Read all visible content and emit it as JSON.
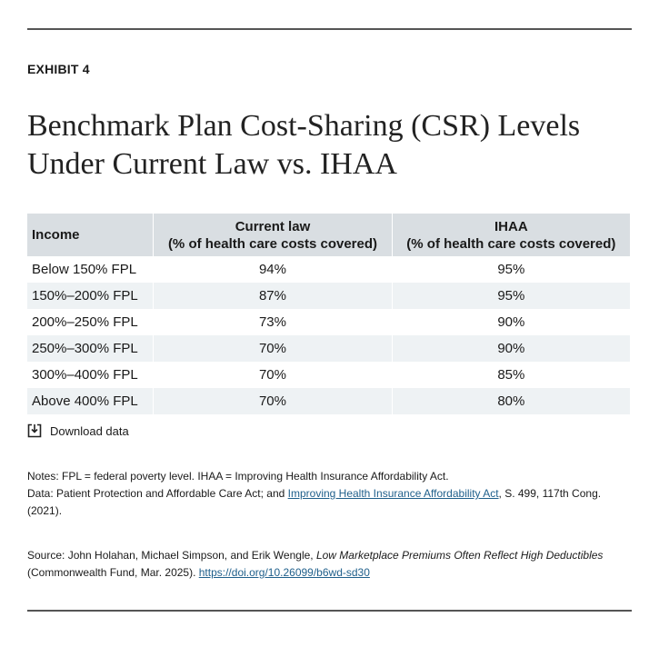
{
  "exhibit": "EXHIBIT 4",
  "title": [
    "Benchmark Plan Cost-Sharing (CSR) Levels",
    "Under Current Law vs. IHAA"
  ],
  "table": {
    "header": [
      {
        "title": "Income"
      },
      {
        "title": "Current law",
        "subtitle": "(% of health care costs covered)"
      },
      {
        "title": "IHAA",
        "subtitle": "(% of health care costs covered)"
      }
    ],
    "rows": [
      [
        "Below 150% FPL",
        "94%",
        "95%"
      ],
      [
        "150%–200% FPL",
        "87%",
        "95%"
      ],
      [
        "200%–250% FPL",
        "73%",
        "90%"
      ],
      [
        "250%–300% FPL",
        "70%",
        "90%"
      ],
      [
        "300%–400% FPL",
        "70%",
        "85%"
      ],
      [
        "Above 400% FPL",
        "70%",
        "80%"
      ]
    ]
  },
  "download": "Download data",
  "notes": {
    "notes_line": "Notes: FPL = federal poverty level. IHAA = Improving Health Insurance Affordability Act.",
    "data_prefix": "Data: Patient Protection and Affordable Care Act; and ",
    "data_link": "Improving Health Insurance Affordability Act",
    "data_suffix": ", S. 499, 117th Cong. (2021)."
  },
  "source": {
    "prefix": "Source: John Holahan, Michael Simpson, and Erik Wengle, ",
    "work": "Low Marketplace Premiums Often Reflect High Deductibles",
    "suffix": " (Commonwealth Fund, Mar. 2025). ",
    "link": "https://doi.org/10.26099/b6wd-sd30"
  }
}
